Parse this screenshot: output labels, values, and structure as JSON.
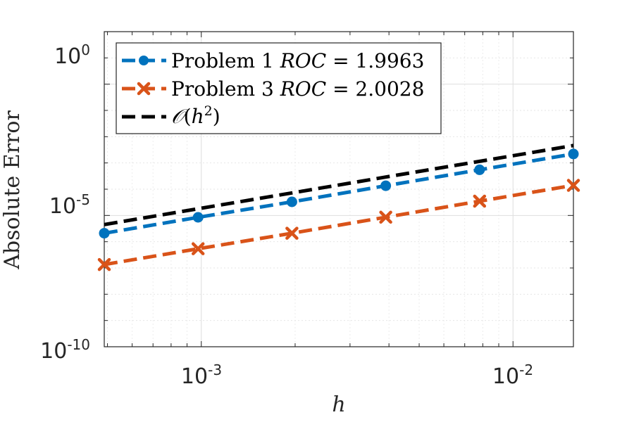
{
  "chart_data": {
    "type": "line",
    "xscale": "log",
    "yscale": "log",
    "xlim": [
      0.00048828125,
      0.015625
    ],
    "ylim": [
      1e-10,
      100
    ],
    "xlabel": "h",
    "ylabel": "Absolute Error",
    "xticks": [
      {
        "base": "10",
        "exp": "-3",
        "value": 0.001
      },
      {
        "base": "10",
        "exp": "-2",
        "value": 0.01
      }
    ],
    "yticks": [
      {
        "base": "10",
        "exp": "0",
        "value": 1
      },
      {
        "base": "10",
        "exp": "-5",
        "value": 1e-05
      },
      {
        "base": "10",
        "exp": "-10",
        "value": 1e-10
      }
    ],
    "grid": true,
    "legend_position": "top-left",
    "legend": {
      "p1_name": "Problem 1 ",
      "p1_roc": "ROC",
      "p1_value": " = 1.9963",
      "p3_name": "Problem 3 ",
      "p3_roc": "ROC",
      "p3_value": " = 2.0028",
      "ref_O": "𝒪",
      "ref_open": "(",
      "ref_h": "h",
      "ref_exp": "2",
      "ref_close": ")"
    },
    "x": [
      0.00048828125,
      0.0009765625,
      0.001953125,
      0.00390625,
      0.0078125,
      0.015625
    ],
    "series": [
      {
        "name": "Problem 1 ROC = 1.9963",
        "color": "#0072BD",
        "marker": "circle",
        "values": [
          2.1e-06,
          8.5e-06,
          3.3e-05,
          0.000135,
          0.00055,
          0.0022
        ]
      },
      {
        "name": "Problem 3 ROC = 2.0028",
        "color": "#D95319",
        "marker": "x",
        "values": [
          1.35e-07,
          5.4e-07,
          2.1e-06,
          8.6e-06,
          3.5e-05,
          0.00014
        ]
      },
      {
        "name": "O(h^2)",
        "color": "#000000",
        "marker": "none",
        "values": [
          4.5e-06,
          1.8e-05,
          7.2e-05,
          0.00029,
          0.00115,
          0.0046
        ]
      }
    ]
  }
}
